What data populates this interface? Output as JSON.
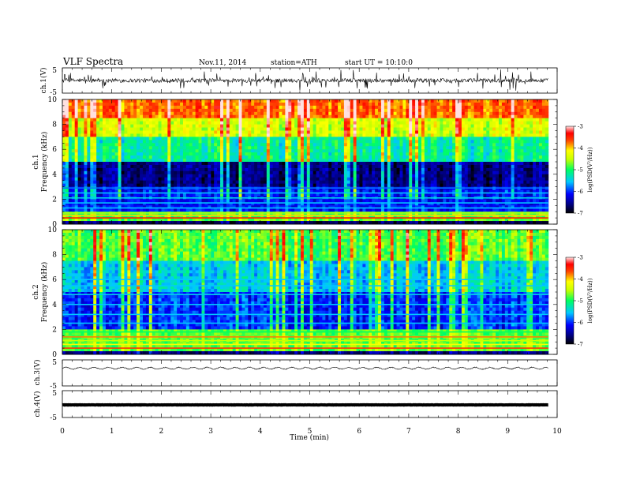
{
  "header": {
    "title": "VLF  Spectra",
    "date": "Nov.11, 2014",
    "station": "station=ATH",
    "start": "start  UT  =   10:10:0"
  },
  "chart_data": [
    {
      "type": "line",
      "name": "waveform-ch1",
      "ylabel": "ch.1(V)",
      "ylim": [
        -5,
        5
      ],
      "ticks": [
        "5",
        "-5"
      ],
      "xlim": [
        0,
        10
      ],
      "data_xmax": 9.82,
      "amplitude": "noisy, large spikes",
      "color": "#000000"
    },
    {
      "type": "heatmap",
      "name": "spectrogram-ch1",
      "ylabel": "ch.1\nFrequency (kHz)",
      "ylim": [
        0,
        10
      ],
      "yticks": [
        "0",
        "2",
        "4",
        "6",
        "8",
        "10"
      ],
      "colorbar": {
        "label": "log(PSD(V²/Hz))",
        "ticks": [
          "-3",
          "-4",
          "-5",
          "-6",
          "-7"
        ],
        "range": [
          -7,
          -3
        ]
      },
      "bands_khz": [
        {
          "from": 0.0,
          "to": 0.3,
          "level": "black/dark"
        },
        {
          "from": 0.3,
          "to": 1.0,
          "level": "red/yellow lines"
        },
        {
          "from": 1.0,
          "to": 3.0,
          "level": "blue with cyan lines"
        },
        {
          "from": 3.0,
          "to": 5.0,
          "level": "dark blue/black"
        },
        {
          "from": 5.0,
          "to": 7.0,
          "level": "green/cyan"
        },
        {
          "from": 7.0,
          "to": 8.5,
          "level": "yellow/green"
        },
        {
          "from": 8.5,
          "to": 10.0,
          "level": "red/orange"
        }
      ]
    },
    {
      "type": "heatmap",
      "name": "spectrogram-ch2",
      "ylabel": "ch.2\nFrequency (kHz)",
      "ylim": [
        0,
        10
      ],
      "yticks": [
        "0",
        "2",
        "4",
        "6",
        "8",
        "10"
      ],
      "colorbar": {
        "label": "log(PSD(V²/Hz))",
        "ticks": [
          "-3",
          "-4",
          "-5",
          "-6",
          "-7"
        ],
        "range": [
          -7,
          -3
        ]
      },
      "bands_khz": [
        {
          "from": 0.0,
          "to": 0.3,
          "level": "dark"
        },
        {
          "from": 0.3,
          "to": 2.0,
          "level": "red/orange/green lines"
        },
        {
          "from": 2.0,
          "to": 5.0,
          "level": "blue with cyan lines"
        },
        {
          "from": 5.0,
          "to": 7.5,
          "level": "blue/green"
        },
        {
          "from": 7.5,
          "to": 10.0,
          "level": "green/yellow"
        }
      ]
    },
    {
      "type": "line",
      "name": "waveform-ch3",
      "ylabel": "ch.3(V)",
      "ylim": [
        -5,
        5
      ],
      "ticks": [
        "5",
        "-5"
      ],
      "xlim": [
        0,
        10
      ],
      "data_xmax": 9.82,
      "mean": 1.8,
      "amplitude": "small periodic wiggle",
      "color": "#000000"
    },
    {
      "type": "line",
      "name": "waveform-ch4",
      "ylabel": "ch.4(V)",
      "ylim": [
        -5,
        5
      ],
      "ticks": [
        "5",
        "-5"
      ],
      "xlim": [
        0,
        10
      ],
      "data_xmax": 9.82,
      "mean": -0.3,
      "amplitude": "flat thick line",
      "color": "#000000"
    }
  ],
  "xaxis": {
    "label": "Time  (min)",
    "ticks": [
      "0",
      "1",
      "2",
      "3",
      "4",
      "5",
      "6",
      "7",
      "8",
      "9",
      "10"
    ],
    "range": [
      0,
      10
    ]
  }
}
